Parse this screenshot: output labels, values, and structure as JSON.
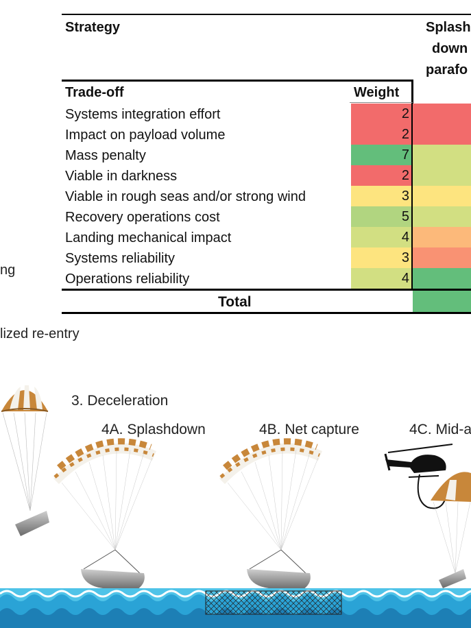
{
  "table": {
    "strategy_header": "Strategy",
    "strategy_column_lines": [
      "Splash",
      "down",
      "parafo"
    ],
    "tradeoff_header": "Trade-off",
    "weight_header": "Weight",
    "total_label": "Total",
    "rows": [
      {
        "label": "Systems integration effort",
        "weight": "2",
        "weight_color": "#f26b6b",
        "score_color": "#f26b6b"
      },
      {
        "label": "Impact on payload volume",
        "weight": "2",
        "weight_color": "#f26b6b",
        "score_color": "#f26b6b"
      },
      {
        "label": "Mass penalty",
        "weight": "7",
        "weight_color": "#63be7b",
        "score_color": "#d2df82"
      },
      {
        "label": "Viable in darkness",
        "weight": "2",
        "weight_color": "#f26b6b",
        "score_color": "#d2df82"
      },
      {
        "label": "Viable in rough seas and/or strong wind",
        "weight": "3",
        "weight_color": "#fde47f",
        "score_color": "#fde47f"
      },
      {
        "label": "Recovery operations cost",
        "weight": "5",
        "weight_color": "#b1d580",
        "score_color": "#d2df82"
      },
      {
        "label": "Landing mechanical impact",
        "weight": "4",
        "weight_color": "#d2df82",
        "score_color": "#fcb97a"
      },
      {
        "label": "Systems reliability",
        "weight": "3",
        "weight_color": "#fde47f",
        "score_color": "#f99273"
      },
      {
        "label": "Operations reliability",
        "weight": "4",
        "weight_color": "#d2df82",
        "score_color": "#63be7b"
      }
    ],
    "total_color": "#63be7b"
  },
  "side_text": {
    "fragment_ng": "ng",
    "fragment_reentry": "lized re-entry"
  },
  "illustration": {
    "stage_3": "3. Deceleration",
    "stage_4a": "4A. Splashdown",
    "stage_4b": "4B. Net capture",
    "stage_4c": "4C. Mid-a",
    "colors": {
      "canopy_orange": "#c8873a",
      "canopy_white": "#f4f1ea",
      "sea_light": "#4fc3e8",
      "sea_dark": "#1d7fb5",
      "vehicle": "#8a8a8a"
    }
  }
}
